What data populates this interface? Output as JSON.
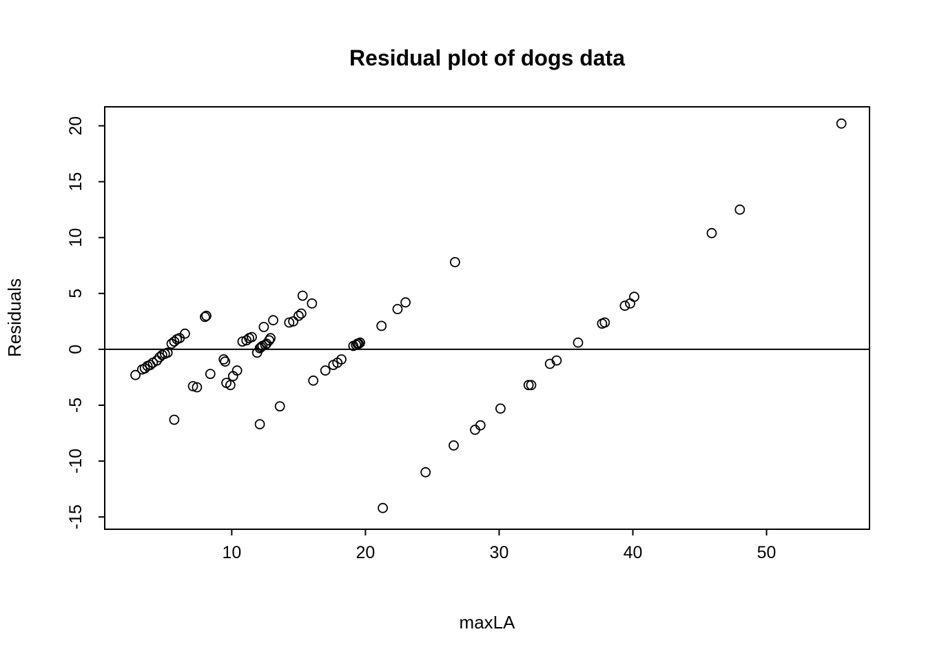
{
  "chart_data": {
    "type": "scatter",
    "title": "Residual plot of dogs data",
    "xlabel": "maxLA",
    "ylabel": "Residuals",
    "xlim": [
      0.5,
      57.7
    ],
    "ylim": [
      -16.1,
      21.7
    ],
    "x_ticks": [
      10,
      20,
      30,
      40,
      50
    ],
    "y_ticks": [
      -15,
      -10,
      -5,
      0,
      5,
      10,
      15,
      20
    ],
    "reference_line_y": 0,
    "marker": "open-circle",
    "marker_color": "#000000",
    "background_color": "#ffffff",
    "grid": false,
    "legend": "none",
    "points": [
      [
        2.8,
        -2.3
      ],
      [
        3.3,
        -1.8
      ],
      [
        3.5,
        -1.7
      ],
      [
        3.7,
        -1.5
      ],
      [
        3.9,
        -1.4
      ],
      [
        4.1,
        -1.2
      ],
      [
        4.4,
        -1.0
      ],
      [
        4.6,
        -0.7
      ],
      [
        4.8,
        -0.5
      ],
      [
        5.0,
        -0.4
      ],
      [
        5.2,
        -0.3
      ],
      [
        5.5,
        0.5
      ],
      [
        5.7,
        0.7
      ],
      [
        5.9,
        0.9
      ],
      [
        6.1,
        1.0
      ],
      [
        6.5,
        1.4
      ],
      [
        5.7,
        -6.3
      ],
      [
        7.1,
        -3.3
      ],
      [
        7.4,
        -3.4
      ],
      [
        8.0,
        2.9
      ],
      [
        8.1,
        3.0
      ],
      [
        8.4,
        -2.2
      ],
      [
        9.4,
        -0.9
      ],
      [
        9.5,
        -1.1
      ],
      [
        9.6,
        -3.0
      ],
      [
        9.9,
        -3.2
      ],
      [
        10.1,
        -2.4
      ],
      [
        10.4,
        -1.9
      ],
      [
        10.8,
        0.7
      ],
      [
        11.1,
        0.8
      ],
      [
        11.3,
        1.0
      ],
      [
        11.5,
        1.1
      ],
      [
        11.9,
        -0.3
      ],
      [
        12.1,
        0.1
      ],
      [
        12.2,
        0.2
      ],
      [
        12.3,
        0.3
      ],
      [
        12.5,
        0.4
      ],
      [
        12.6,
        0.5
      ],
      [
        12.8,
        0.8
      ],
      [
        12.9,
        1.0
      ],
      [
        12.4,
        2.0
      ],
      [
        13.1,
        2.6
      ],
      [
        12.1,
        -6.7
      ],
      [
        13.6,
        -5.1
      ],
      [
        14.3,
        2.4
      ],
      [
        14.6,
        2.5
      ],
      [
        15.0,
        3.0
      ],
      [
        15.2,
        3.2
      ],
      [
        15.3,
        4.8
      ],
      [
        16.0,
        4.1
      ],
      [
        16.1,
        -2.8
      ],
      [
        17.0,
        -1.9
      ],
      [
        17.6,
        -1.4
      ],
      [
        17.9,
        -1.2
      ],
      [
        18.2,
        -0.9
      ],
      [
        19.1,
        0.3
      ],
      [
        19.3,
        0.4
      ],
      [
        19.4,
        0.5
      ],
      [
        19.5,
        0.5
      ],
      [
        19.6,
        0.6
      ],
      [
        21.2,
        2.1
      ],
      [
        22.4,
        3.6
      ],
      [
        23.0,
        4.2
      ],
      [
        21.3,
        -14.2
      ],
      [
        24.5,
        -11.0
      ],
      [
        26.6,
        -8.6
      ],
      [
        28.2,
        -7.2
      ],
      [
        28.6,
        -6.8
      ],
      [
        30.1,
        -5.3
      ],
      [
        26.7,
        7.8
      ],
      [
        32.2,
        -3.2
      ],
      [
        32.4,
        -3.2
      ],
      [
        33.8,
        -1.3
      ],
      [
        34.3,
        -1.0
      ],
      [
        35.9,
        0.6
      ],
      [
        37.7,
        2.3
      ],
      [
        37.9,
        2.4
      ],
      [
        39.4,
        3.9
      ],
      [
        39.8,
        4.1
      ],
      [
        40.1,
        4.7
      ],
      [
        45.9,
        10.4
      ],
      [
        48.0,
        12.5
      ],
      [
        55.6,
        20.2
      ]
    ]
  }
}
